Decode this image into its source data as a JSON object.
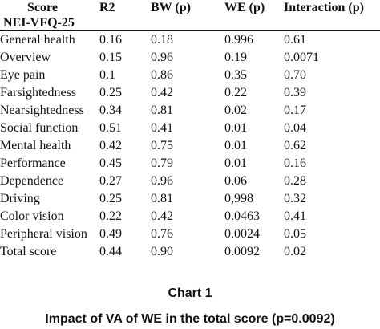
{
  "table": {
    "header": {
      "score_label": "Score",
      "measure_label": "NEI-VFQ-25",
      "r2": "R2",
      "bw": "BW (p)",
      "we": "WE (p)",
      "interaction": "Interaction (p)"
    },
    "rows": [
      {
        "label": "General health",
        "r2": "0.16",
        "bw": "0.18",
        "we": "0.996",
        "interaction": "0.61"
      },
      {
        "label": "Overview",
        "r2": "0.15",
        "bw": "0.96",
        "we": "0.19",
        "interaction": "0.0071"
      },
      {
        "label": "Eye pain",
        "r2": "0.1",
        "bw": "0.86",
        "we": "0.35",
        "interaction": "0.70"
      },
      {
        "label": "Farsightedness",
        "r2": "0.25",
        "bw": "0.42",
        "we": "0.22",
        "interaction": "0.39"
      },
      {
        "label": "Nearsightedness",
        "r2": "0.34",
        "bw": "0.81",
        "we": "0.02",
        "interaction": "0.17"
      },
      {
        "label": "Social function",
        "r2": "0.51",
        "bw": "0.41",
        "we": "0.01",
        "interaction": "0.04"
      },
      {
        "label": "Mental health",
        "r2": "0.42",
        "bw": "0.75",
        "we": "0.01",
        "interaction": "0.62"
      },
      {
        "label": "Performance",
        "r2": "0.45",
        "bw": "0.79",
        "we": "0.01",
        "interaction": "0.16"
      },
      {
        "label": "Dependence",
        "r2": "0.27",
        "bw": "0.96",
        "we": "0.06",
        "interaction": "0.28"
      },
      {
        "label": "Driving",
        "r2": "0.25",
        "bw": "0.81",
        "we": "0,998",
        "interaction": "0.32"
      },
      {
        "label": "Color vision",
        "r2": "0.22",
        "bw": "0.42",
        "we": "0.0463",
        "interaction": "0.41"
      },
      {
        "label": "Peripheral vision",
        "r2": "0.49",
        "bw": "0.76",
        "we": "0.0024",
        "interaction": "0.05"
      },
      {
        "label": "Total score",
        "r2": "0.44",
        "bw": "0.90",
        "we": "0.0092",
        "interaction": "0.02"
      }
    ]
  },
  "caption": {
    "title": "Chart 1",
    "subtitle": "Impact of VA of WE in the total score (p=0.0092)"
  }
}
